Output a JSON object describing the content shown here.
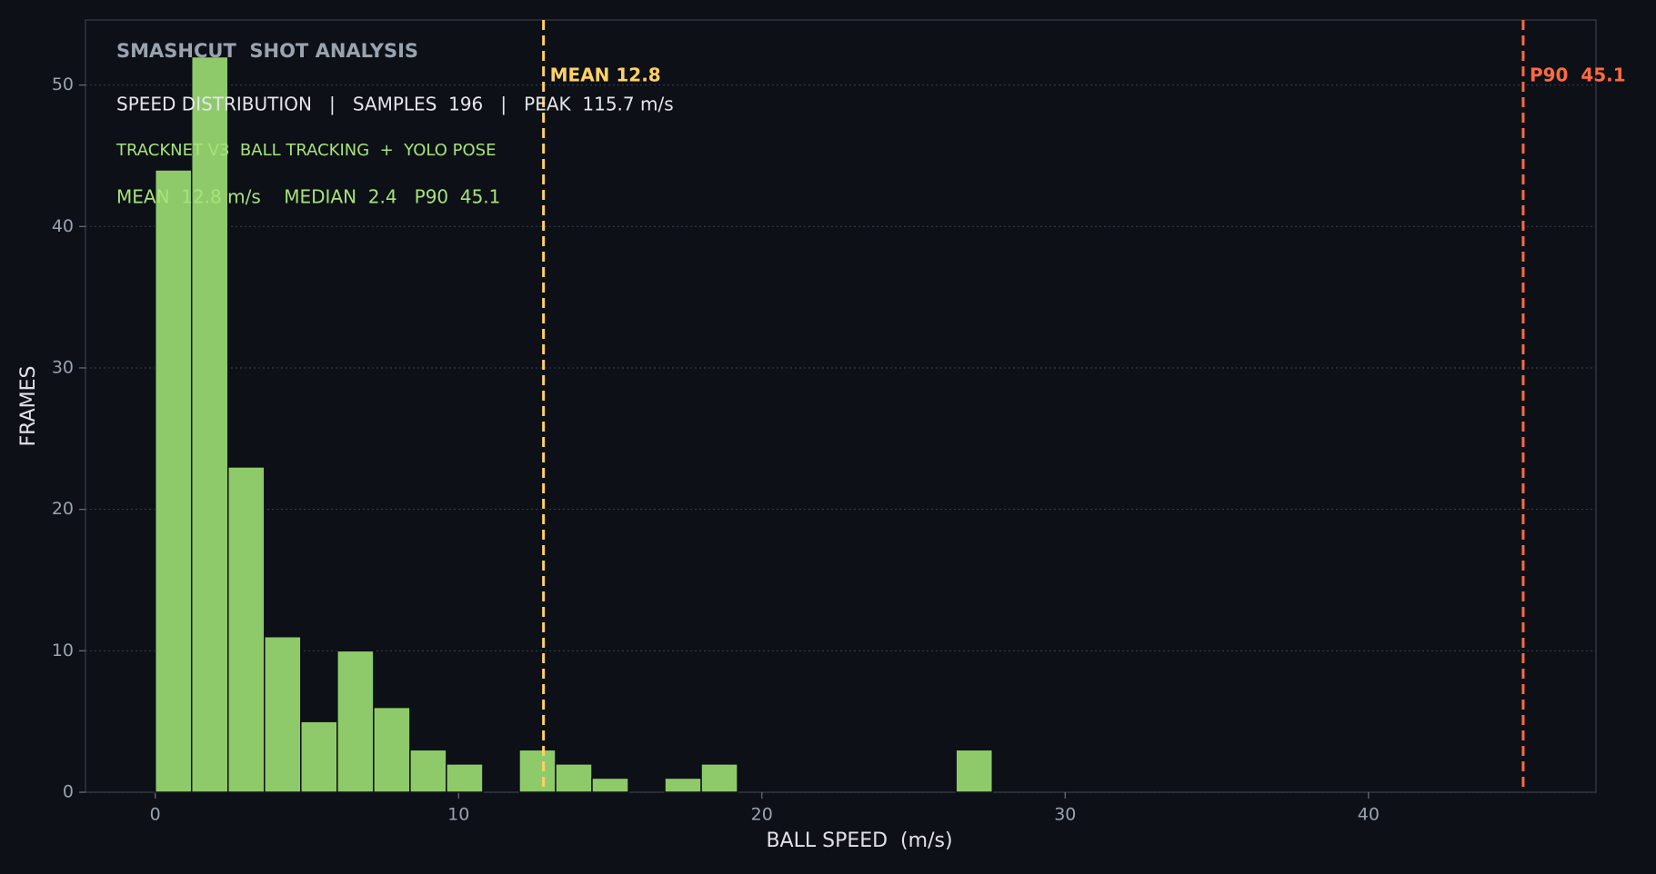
{
  "chart_data": {
    "type": "histogram",
    "title": "SMASHCUT  SHOT ANALYSIS",
    "subtitle": "SPEED DISTRIBUTION   |   SAMPLES  196   |   PEAK  115.7 m/s",
    "annotations": [
      "TRACKNET V3  BALL TRACKING  +  YOLO POSE",
      "MEAN  12.8 m/s    MEDIAN  2.4   P90  45.1"
    ],
    "x_label": "BALL SPEED  (m/s)",
    "y_label": "FRAMES",
    "bins": [
      0,
      1.2,
      2.4,
      3.6,
      4.8,
      6,
      7.2,
      8.4,
      9.6,
      10.8,
      12,
      13.2,
      14.4,
      15.6,
      16.8,
      18,
      19.2,
      20.4,
      21.6,
      22.8,
      24,
      25.2,
      26.4,
      27.6
    ],
    "values": [
      44,
      52,
      23,
      11,
      5,
      10,
      6,
      3,
      2,
      0,
      3,
      2,
      1,
      0,
      1,
      2,
      0,
      0,
      0,
      0,
      0,
      0,
      3
    ],
    "color": "#8fca6a",
    "vlines": [
      {
        "value": 12.8,
        "label": "MEAN 12.8",
        "color": "#ffd166"
      },
      {
        "value": 45.1,
        "label": "P90  45.1",
        "color": "#ff6b3d"
      }
    ],
    "xlim": [
      -2.3,
      47.5
    ],
    "xticks": [
      0,
      10,
      20,
      30,
      40
    ],
    "ylim": [
      0,
      54.6
    ],
    "yticks": [
      0,
      10,
      20,
      30,
      40,
      50
    ],
    "grid": true
  }
}
